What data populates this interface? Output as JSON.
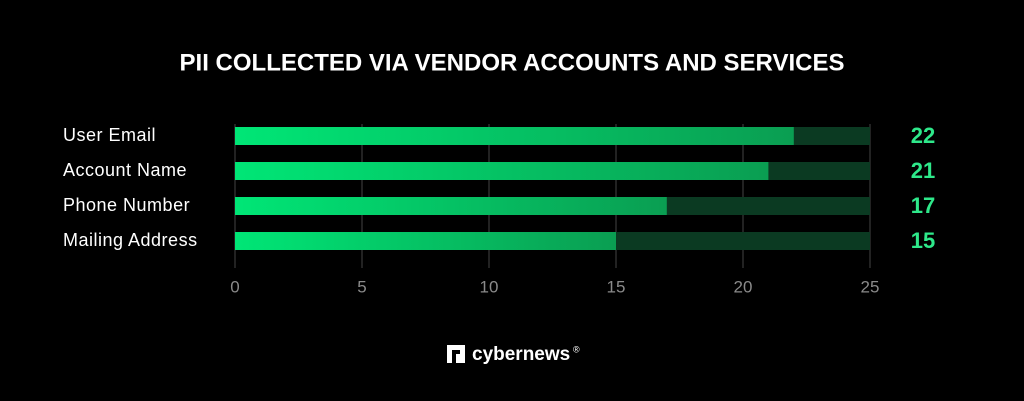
{
  "chart_data": {
    "type": "hbar",
    "title": "PII COLLECTED VIA VENDOR ACCOUNTS AND SERVICES",
    "categories": [
      "User Email",
      "Account Name",
      "Phone Number",
      "Mailing Address"
    ],
    "values": [
      22,
      21,
      17,
      15
    ],
    "color": "#00e676",
    "track_color": "#0b3a22",
    "label_color": "#2ee88a",
    "xlim": [
      0,
      25
    ],
    "xticks": [
      0,
      5,
      10,
      15,
      20,
      25
    ],
    "grid": true
  },
  "brand": {
    "name": "cybernews",
    "mark": "®"
  }
}
